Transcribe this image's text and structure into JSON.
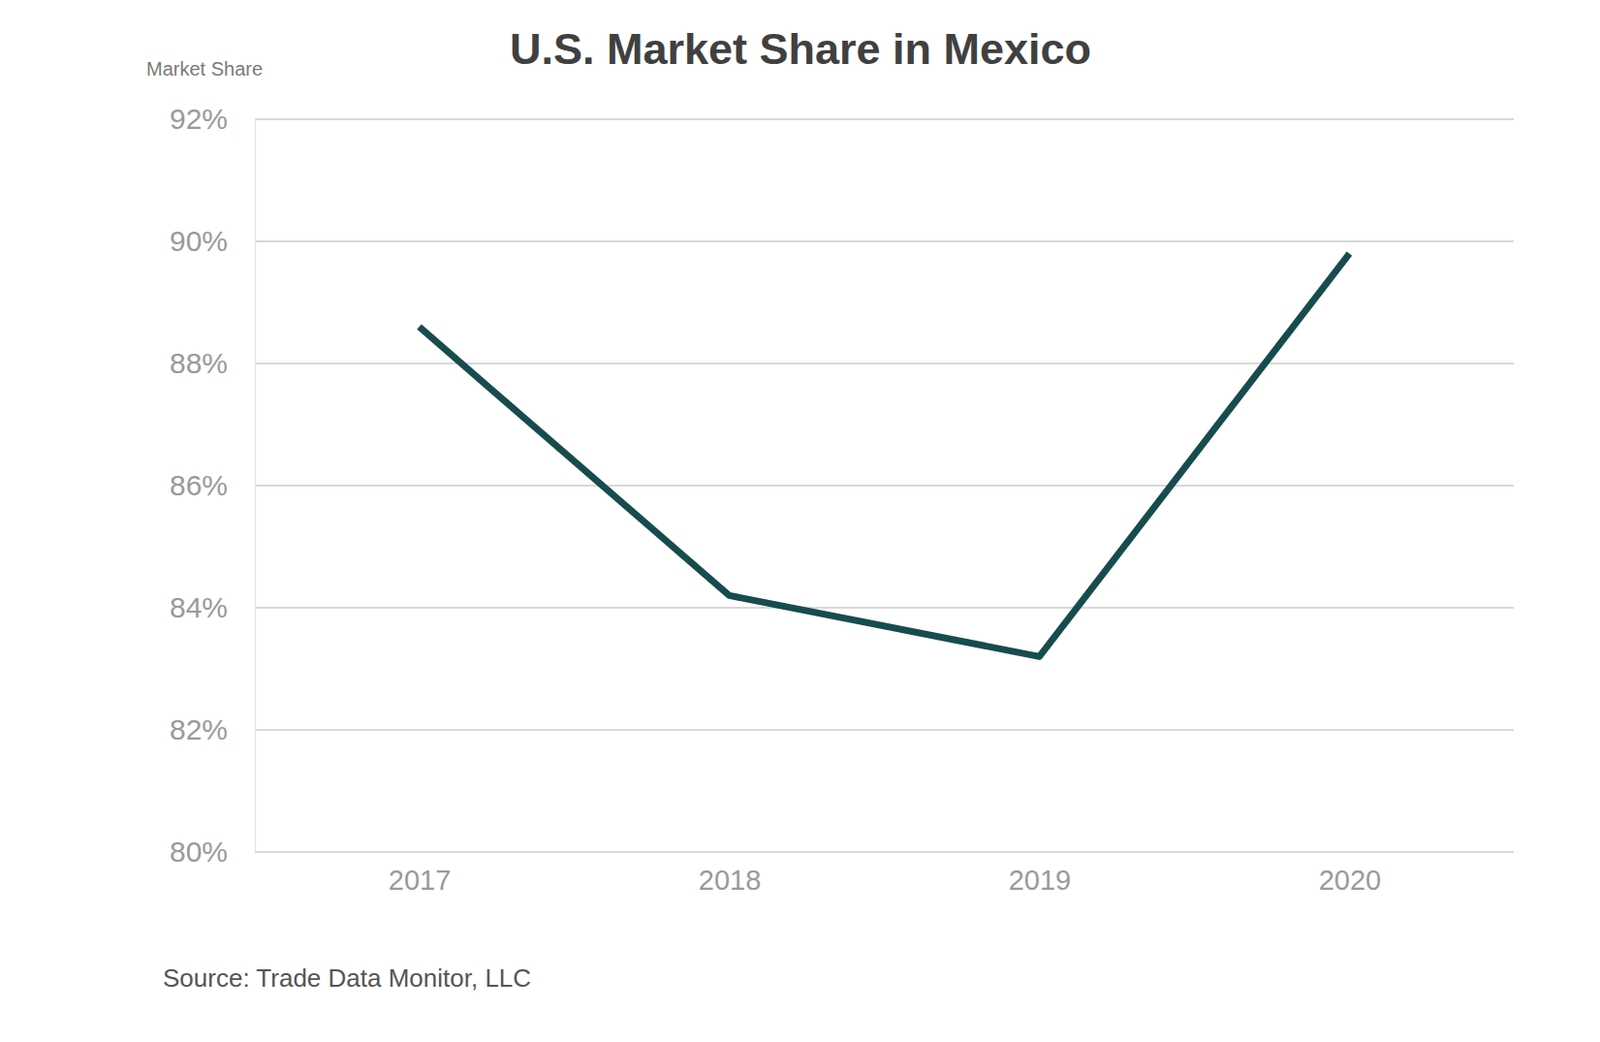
{
  "chart_data": {
    "type": "line",
    "title": "U.S. Market Share in Mexico",
    "y_label": "Market Share",
    "source": "Source: Trade Data Monitor, LLC",
    "categories": [
      "2017",
      "2018",
      "2019",
      "2020"
    ],
    "values": [
      88.6,
      84.2,
      83.2,
      89.8
    ],
    "color": "#174c4f",
    "ylim": [
      80,
      92
    ],
    "yticks": [
      {
        "value": 80,
        "label": "80%"
      },
      {
        "value": 82,
        "label": "82%"
      },
      {
        "value": 84,
        "label": "84%"
      },
      {
        "value": 86,
        "label": "86%"
      },
      {
        "value": 88,
        "label": "88%"
      },
      {
        "value": 90,
        "label": "90%"
      },
      {
        "value": 92,
        "label": "92%"
      }
    ],
    "grid": true
  }
}
